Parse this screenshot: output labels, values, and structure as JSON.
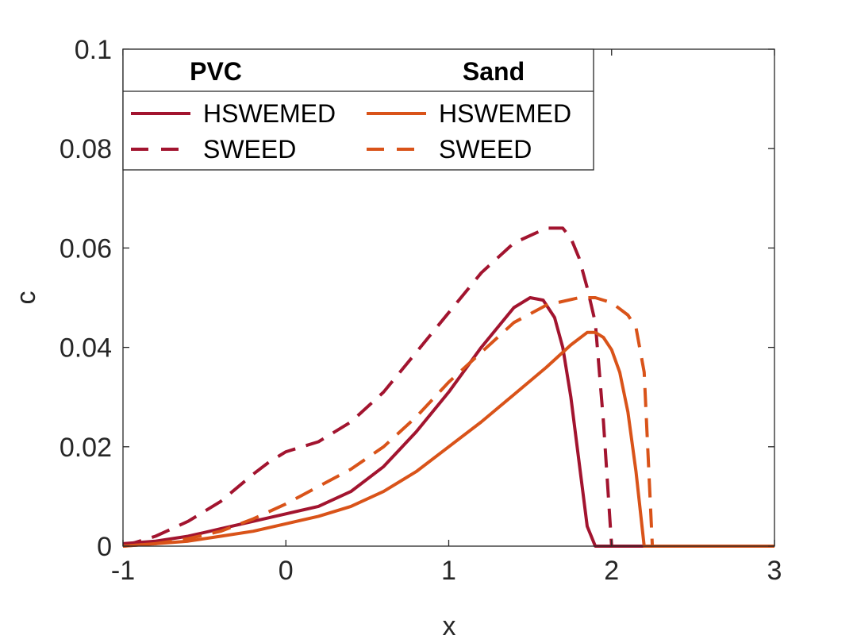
{
  "chart_data": {
    "type": "line",
    "title": "",
    "xlabel": "x",
    "ylabel": "c",
    "xlim": [
      -1,
      3
    ],
    "ylim": [
      0,
      0.1
    ],
    "xticks": [
      -1,
      0,
      1,
      2,
      3
    ],
    "xtick_labels": [
      "-1",
      "0",
      "1",
      "2",
      "3"
    ],
    "yticks": [
      0,
      0.02,
      0.04,
      0.06,
      0.08,
      0.1
    ],
    "ytick_labels": [
      "0",
      "0.02",
      "0.04",
      "0.06",
      "0.08",
      "0.1"
    ],
    "grid": false,
    "legend": {
      "placement": "top-left",
      "group_titles": [
        "PVC",
        "Sand"
      ]
    },
    "series": [
      {
        "name": "HSWEMED",
        "group": "PVC",
        "color": "#A2142F",
        "dash": "solid",
        "x": [
          -1,
          -0.8,
          -0.6,
          -0.4,
          -0.2,
          0,
          0.2,
          0.4,
          0.6,
          0.8,
          1.0,
          1.2,
          1.4,
          1.5,
          1.58,
          1.65,
          1.7,
          1.75,
          1.8,
          1.85,
          1.9,
          3.0
        ],
        "y": [
          0.0005,
          0.001,
          0.002,
          0.0035,
          0.005,
          0.0065,
          0.008,
          0.011,
          0.016,
          0.023,
          0.031,
          0.04,
          0.048,
          0.05,
          0.0495,
          0.046,
          0.04,
          0.03,
          0.017,
          0.004,
          0.0,
          0.0
        ]
      },
      {
        "name": "SWEED",
        "group": "PVC",
        "color": "#A2142F",
        "dash": "dashed",
        "x": [
          -1,
          -0.8,
          -0.6,
          -0.4,
          -0.2,
          -0.1,
          0,
          0.2,
          0.4,
          0.6,
          0.8,
          1.0,
          1.2,
          1.4,
          1.6,
          1.7,
          1.75,
          1.8,
          1.85,
          1.9,
          1.95,
          2.0,
          3.0
        ],
        "y": [
          0.0,
          0.002,
          0.005,
          0.009,
          0.0145,
          0.017,
          0.019,
          0.021,
          0.025,
          0.031,
          0.039,
          0.047,
          0.055,
          0.061,
          0.064,
          0.064,
          0.062,
          0.058,
          0.052,
          0.045,
          0.025,
          0.0,
          0.0
        ]
      },
      {
        "name": "HSWEMED",
        "group": "Sand",
        "color": "#D95319",
        "dash": "solid",
        "x": [
          -1,
          -0.8,
          -0.6,
          -0.4,
          -0.2,
          0,
          0.2,
          0.4,
          0.6,
          0.8,
          1.0,
          1.2,
          1.4,
          1.6,
          1.75,
          1.85,
          1.9,
          1.95,
          2.0,
          2.05,
          2.1,
          2.15,
          2.2,
          3.0
        ],
        "y": [
          0.0,
          0.0005,
          0.001,
          0.002,
          0.003,
          0.0045,
          0.006,
          0.008,
          0.011,
          0.015,
          0.02,
          0.025,
          0.0305,
          0.036,
          0.0405,
          0.043,
          0.043,
          0.042,
          0.0395,
          0.035,
          0.027,
          0.015,
          0.0,
          0.0
        ]
      },
      {
        "name": "SWEED",
        "group": "Sand",
        "color": "#D95319",
        "dash": "dashed",
        "x": [
          -1,
          -0.8,
          -0.6,
          -0.4,
          -0.2,
          0,
          0.2,
          0.4,
          0.6,
          0.8,
          1.0,
          1.2,
          1.4,
          1.6,
          1.8,
          1.9,
          2.0,
          2.1,
          2.15,
          2.2,
          2.25,
          3.0
        ],
        "y": [
          0.0,
          0.0005,
          0.0015,
          0.003,
          0.0055,
          0.0085,
          0.012,
          0.0155,
          0.02,
          0.026,
          0.033,
          0.039,
          0.045,
          0.0485,
          0.05,
          0.05,
          0.049,
          0.0465,
          0.044,
          0.035,
          0.0,
          0.0
        ]
      }
    ]
  }
}
